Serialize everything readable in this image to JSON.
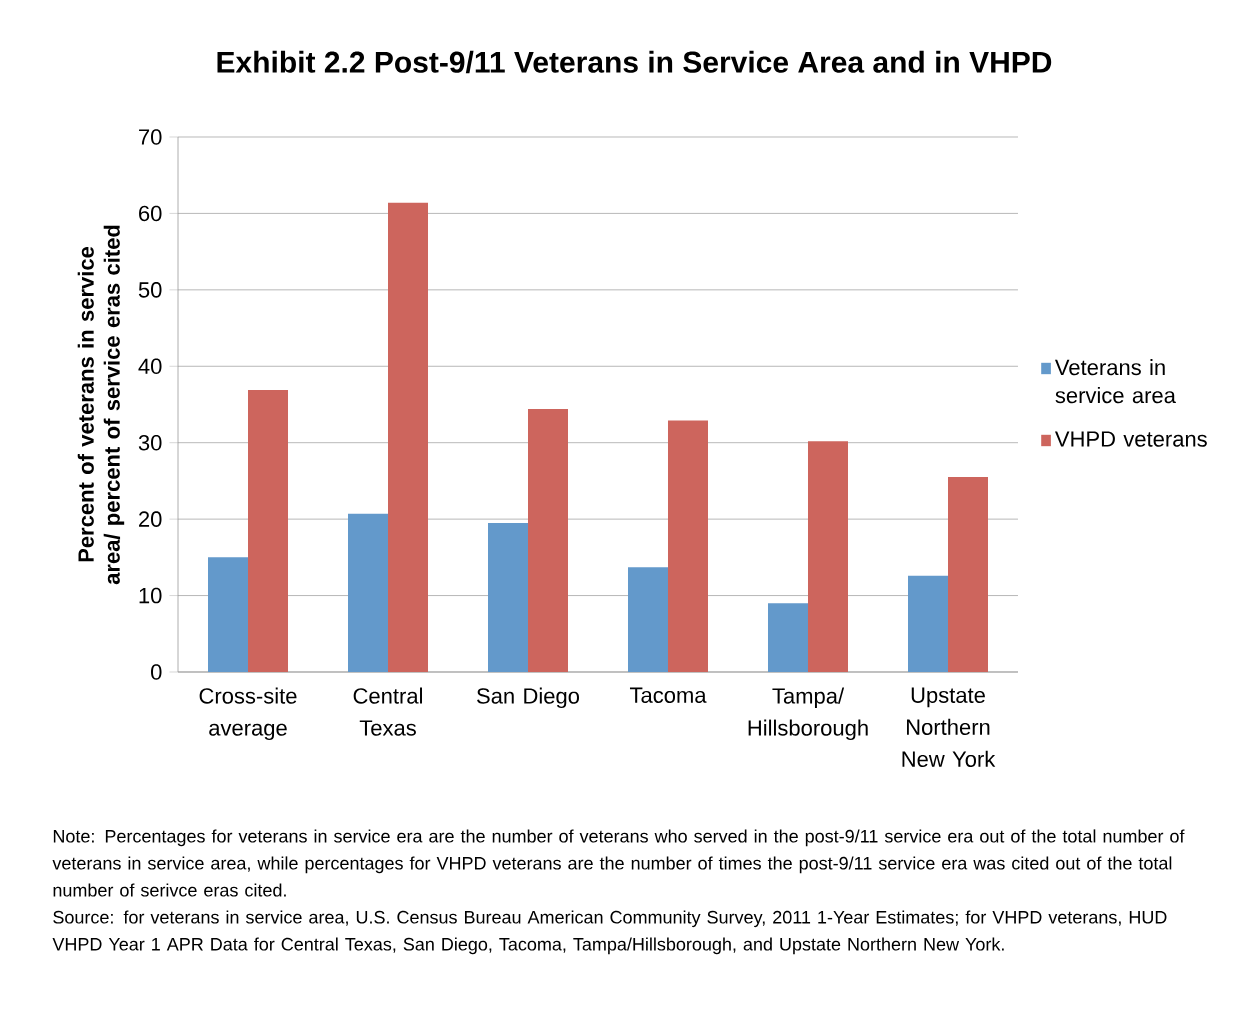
{
  "chart_data": {
    "type": "bar",
    "title": "Exhibit 2.2 Post-9/11 Veterans in Service Area and in VHPD",
    "ylabel": "Percent of veterans in service area/ percent of service eras cited",
    "categories": [
      "Cross-site average",
      "Central Texas",
      "San Diego",
      "Tacoma",
      "Tampa/ Hillsborough",
      "Upstate Northern New York"
    ],
    "series": [
      {
        "name": "Veterans in service area",
        "color": "#6399cb",
        "values": [
          15.0,
          20.7,
          19.5,
          13.7,
          9.0,
          12.6
        ]
      },
      {
        "name": "VHPD veterans",
        "color": "#cd655d",
        "values": [
          36.9,
          61.4,
          34.4,
          32.9,
          30.2,
          25.5
        ]
      }
    ],
    "ylim": [
      0,
      70
    ],
    "yticks": [
      0,
      10,
      20,
      30,
      40,
      50,
      60,
      70
    ],
    "grid": "y",
    "legend": "right",
    "annotations": [
      "Note: Percentages for veterans in service era are the number of veterans who served in the post-9/11 service era out of the total number of veterans in service area, while percentages for VHPD veterans  are the number of times the post-9/11 service era was cited out of the total number of serivce eras cited.",
      "Source: for veterans in service area, U.S. Census Bureau American Community Survey, 2011 1-Year Estimates; for VHPD veterans, HUD VHPD Year 1 APR Data for Central Texas, San Diego, Tacoma, Tampa/Hillsborough, and Upstate Northern New York."
    ]
  }
}
